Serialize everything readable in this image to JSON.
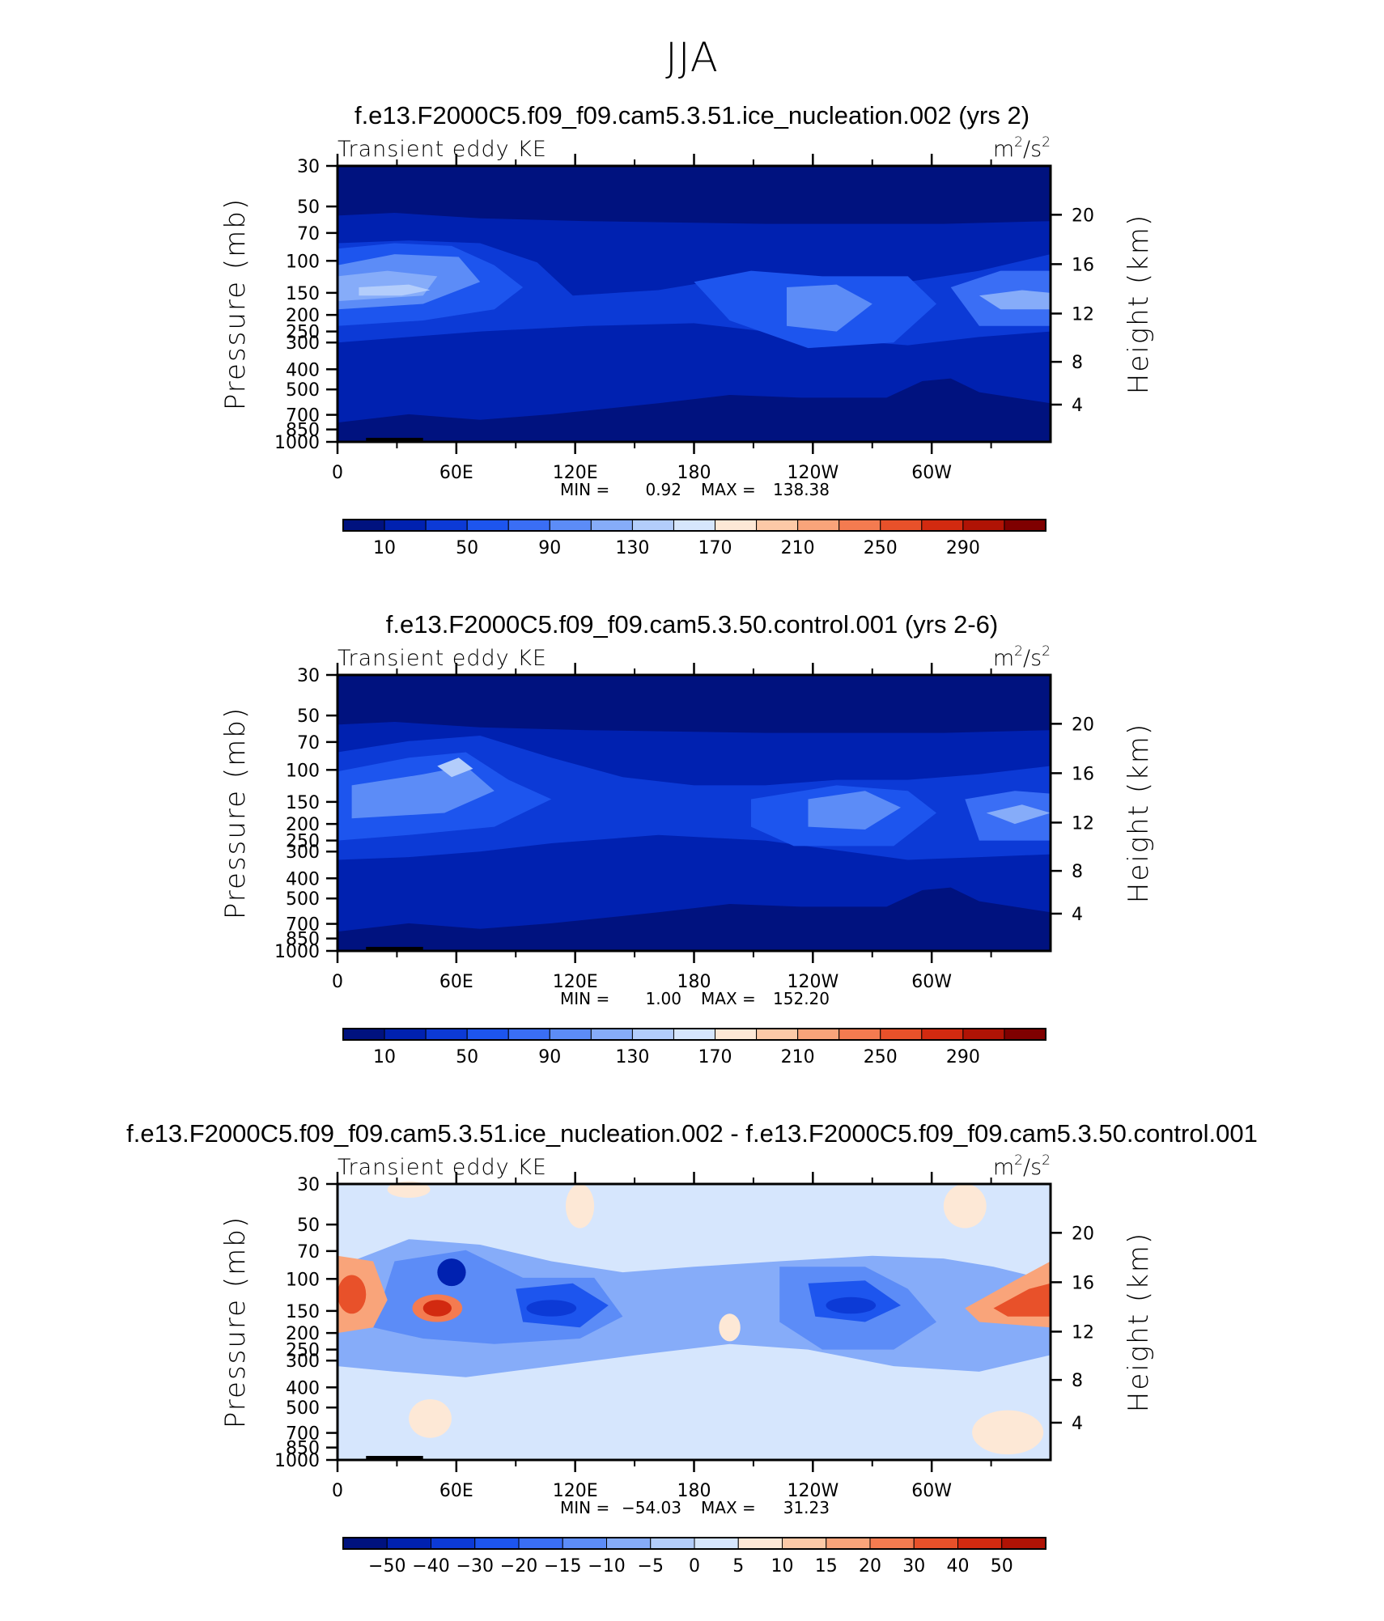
{
  "page": {
    "title": "JJA"
  },
  "chart_data": [
    {
      "type": "heatmap",
      "title": "f.e13.F2000C5.f09_f09.cam5.3.51.ice_nucleation.002 (yrs 2)",
      "subtitle_left": "Transient eddy KE",
      "units_base": "m",
      "units_exp": "2",
      "units_mid": "/s",
      "units_exp2": "2",
      "ylabel": "Pressure (mb)",
      "ylabel_right": "Height (km)",
      "x_ticks": [
        "0",
        "60E",
        "120E",
        "180",
        "120W",
        "60W"
      ],
      "y_ticks": [
        "30",
        "50",
        "70",
        "100",
        "150",
        "200",
        "250",
        "300",
        "400",
        "500",
        "700",
        "850",
        "1000"
      ],
      "y_ticks_right": [
        "20",
        "16",
        "12",
        "8",
        "4"
      ],
      "stats": {
        "min_label": "MIN =",
        "min": "0.92",
        "max_label": "MAX =",
        "max": "138.38"
      },
      "colorbar": {
        "labels": [
          "10",
          "50",
          "90",
          "130",
          "170",
          "210",
          "250",
          "290"
        ],
        "colors": [
          "#00127f",
          "#0021b0",
          "#0c3ad6",
          "#1d55ee",
          "#3a6ef5",
          "#5c8cf7",
          "#86acf9",
          "#b3cdfb",
          "#d6e6fd",
          "#fde8d6",
          "#fcc9a7",
          "#f9a47a",
          "#f47b50",
          "#e8512a",
          "#d22a10",
          "#b01305",
          "#7f0000"
        ]
      }
    },
    {
      "type": "heatmap",
      "title": "f.e13.F2000C5.f09_f09.cam5.3.50.control.001 (yrs 2-6)",
      "subtitle_left": "Transient eddy KE",
      "units_base": "m",
      "units_exp": "2",
      "units_mid": "/s",
      "units_exp2": "2",
      "ylabel": "Pressure (mb)",
      "ylabel_right": "Height (km)",
      "x_ticks": [
        "0",
        "60E",
        "120E",
        "180",
        "120W",
        "60W"
      ],
      "y_ticks": [
        "30",
        "50",
        "70",
        "100",
        "150",
        "200",
        "250",
        "300",
        "400",
        "500",
        "700",
        "850",
        "1000"
      ],
      "y_ticks_right": [
        "20",
        "16",
        "12",
        "8",
        "4"
      ],
      "stats": {
        "min_label": "MIN =",
        "min": "1.00",
        "max_label": "MAX =",
        "max": "152.20"
      },
      "colorbar": {
        "labels": [
          "10",
          "50",
          "90",
          "130",
          "170",
          "210",
          "250",
          "290"
        ],
        "colors": [
          "#00127f",
          "#0021b0",
          "#0c3ad6",
          "#1d55ee",
          "#3a6ef5",
          "#5c8cf7",
          "#86acf9",
          "#b3cdfb",
          "#d6e6fd",
          "#fde8d6",
          "#fcc9a7",
          "#f9a47a",
          "#f47b50",
          "#e8512a",
          "#d22a10",
          "#b01305",
          "#7f0000"
        ]
      }
    },
    {
      "type": "heatmap",
      "title": "f.e13.F2000C5.f09_f09.cam5.3.51.ice_nucleation.002 - f.e13.F2000C5.f09_f09.cam5.3.50.control.001",
      "subtitle_left": "Transient eddy KE",
      "units_base": "m",
      "units_exp": "2",
      "units_mid": "/s",
      "units_exp2": "2",
      "ylabel": "Pressure (mb)",
      "ylabel_right": "Height (km)",
      "x_ticks": [
        "0",
        "60E",
        "120E",
        "180",
        "120W",
        "60W"
      ],
      "y_ticks": [
        "30",
        "50",
        "70",
        "100",
        "150",
        "200",
        "250",
        "300",
        "400",
        "500",
        "700",
        "850",
        "1000"
      ],
      "y_ticks_right": [
        "20",
        "16",
        "12",
        "8",
        "4"
      ],
      "stats": {
        "min_label": "MIN =",
        "min": "−54.03",
        "max_label": "MAX =",
        "max": "31.23"
      },
      "colorbar": {
        "labels": [
          "−50",
          "−40",
          "−30",
          "−20",
          "−15",
          "−10",
          "−5",
          "0",
          "5",
          "10",
          "15",
          "20",
          "30",
          "40",
          "50"
        ],
        "colors": [
          "#00127f",
          "#0021b0",
          "#0c3ad6",
          "#1d55ee",
          "#3a6ef5",
          "#5c8cf7",
          "#86acf9",
          "#b3cdfb",
          "#d6e6fd",
          "#fde8d6",
          "#fcc9a7",
          "#f9a47a",
          "#f47b50",
          "#e8512a",
          "#d22a10",
          "#b01305"
        ]
      }
    }
  ]
}
